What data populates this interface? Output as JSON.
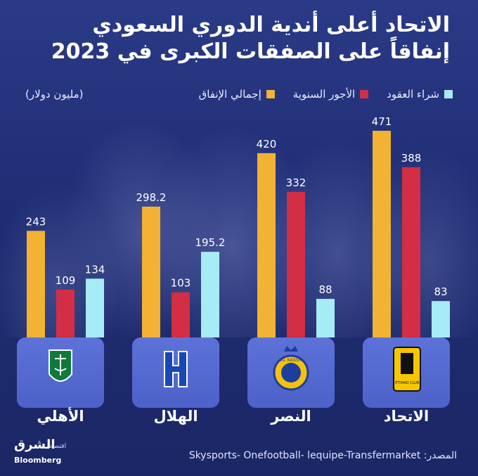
{
  "title_lines": [
    "الاتحاد أعلى أندية الدوري السعودي",
    "إنفاقاً على الصفقات الكبرى في 2023"
  ],
  "legend": {
    "unit": "(مليون دولار)",
    "items": [
      {
        "label": "شراء العقود",
        "color": "#a6ecf6"
      },
      {
        "label": "الأجور السنوية",
        "color": "#d22e45"
      },
      {
        "label": "إجمالي الإنفاق",
        "color": "#f2b233"
      }
    ]
  },
  "chart_data": {
    "type": "bar",
    "categories": [
      "الأهلي",
      "الهلال",
      "النصر",
      "الاتحاد"
    ],
    "series": [
      {
        "name": "إجمالي الإنفاق",
        "color": "#f2b233",
        "values": [
          243,
          298.2,
          420,
          471
        ]
      },
      {
        "name": "الأجور السنوية",
        "color": "#d22e45",
        "values": [
          109,
          103,
          332,
          388
        ]
      },
      {
        "name": "شراء العقود",
        "color": "#a6ecf6",
        "values": [
          134,
          195.2,
          88,
          83
        ]
      }
    ],
    "value_labels": [
      [
        "243",
        "109",
        "134"
      ],
      [
        "298.2",
        "103",
        "195.2"
      ],
      [
        "420",
        "332",
        "88"
      ],
      [
        "471",
        "388",
        "83"
      ]
    ]
  },
  "clubs": [
    {
      "name": "الأهلي",
      "logo": "al-ahli-logo"
    },
    {
      "name": "الهلال",
      "logo": "al-hilal-logo"
    },
    {
      "name": "النصر",
      "logo": "al-nassr-logo"
    },
    {
      "name": "الاتحاد",
      "logo": "al-ittihad-logo"
    }
  ],
  "logo_text": {
    "nassr_ring": "AL NASSR",
    "ittihad_club": "ITTIHAD CLUB"
  },
  "source": "Skysports- Onefootball- lequipe-Transfermarket :المصدر",
  "brand": {
    "arabic": "الشرق",
    "sub": "اقتصاد",
    "english": "Bloomberg"
  }
}
